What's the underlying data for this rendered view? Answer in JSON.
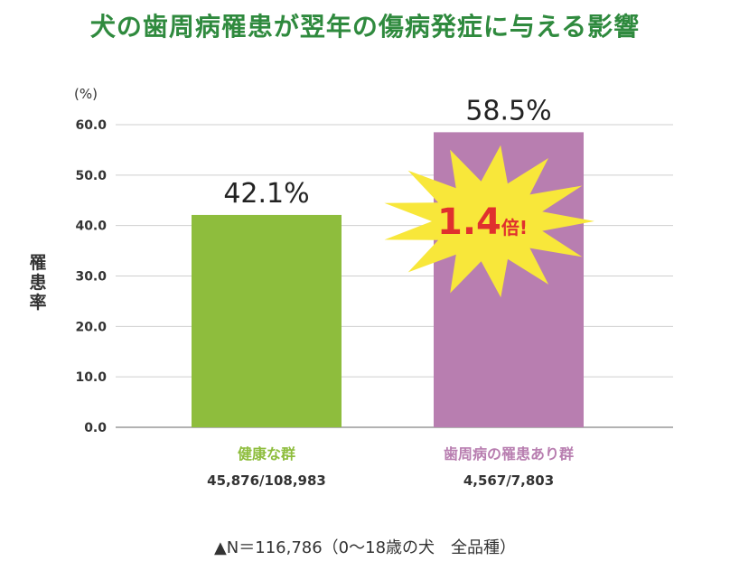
{
  "chart_data": {
    "type": "bar",
    "title": "犬の歯周病罹患が翌年の傷病発症に与える影響",
    "ylabel": "罹患率",
    "unit": "(%)",
    "ylim": [
      0,
      60
    ],
    "yticks": [
      "0.0",
      "10.0",
      "20.0",
      "30.0",
      "40.0",
      "50.0",
      "60.0"
    ],
    "grid": true,
    "categories": [
      "健康な群",
      "歯周病の罹患あり群"
    ],
    "sublabels": [
      "45,876/108,983",
      "4,567/7,803"
    ],
    "values": [
      42.1,
      58.5
    ],
    "value_labels": [
      "42.1%",
      "58.5%"
    ],
    "colors": [
      "#8ebd3d",
      "#b87eb0"
    ],
    "category_colors": [
      "#8ebd3d",
      "#b87eb0"
    ],
    "annotation": {
      "number": "1.4",
      "suffix": "倍!",
      "burst_color": "#f8e73a",
      "text_color": "#e0302e"
    }
  },
  "footnote": "▲N＝116,786（0〜18歳の犬　全品種）"
}
